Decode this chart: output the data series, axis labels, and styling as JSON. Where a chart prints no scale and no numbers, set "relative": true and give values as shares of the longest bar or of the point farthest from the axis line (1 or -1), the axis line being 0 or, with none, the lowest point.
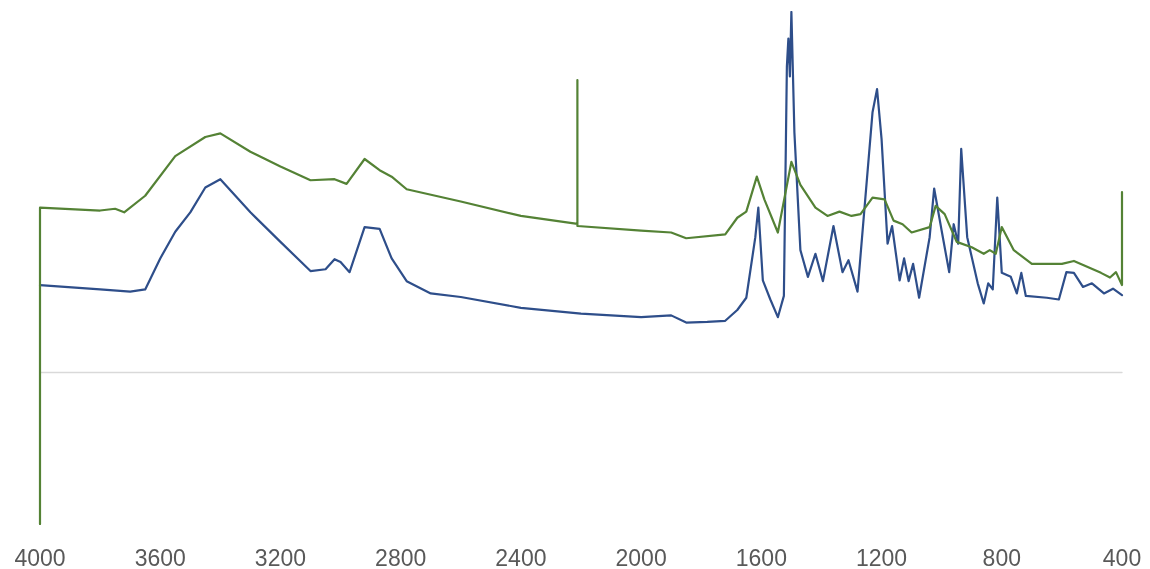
{
  "chart_data": {
    "type": "line",
    "relative": true,
    "xlim": [
      4000,
      400
    ],
    "xticks": [
      4000,
      3600,
      3200,
      2800,
      2400,
      2000,
      1600,
      1200,
      800,
      400
    ],
    "grid": false,
    "marker": "none",
    "line_style": "solid",
    "series": [
      {
        "color": "#2e4e8a",
        "x": [
          4000,
          3800,
          3700,
          3650,
          3600,
          3550,
          3500,
          3450,
          3400,
          3350,
          3300,
          3200,
          3100,
          3050,
          3020,
          3000,
          2970,
          2920,
          2870,
          2830,
          2780,
          2700,
          2600,
          2400,
          2200,
          2000,
          1900,
          1850,
          1780,
          1720,
          1680,
          1650,
          1620,
          1610,
          1595,
          1570,
          1545,
          1525,
          1515,
          1510,
          1505,
          1500,
          1490,
          1470,
          1445,
          1420,
          1395,
          1360,
          1330,
          1310,
          1280,
          1230,
          1215,
          1200,
          1180,
          1165,
          1140,
          1125,
          1110,
          1095,
          1075,
          1040,
          1025,
          1000,
          975,
          960,
          945,
          935,
          915,
          880,
          860,
          845,
          830,
          815,
          800,
          770,
          750,
          735,
          720,
          650,
          610,
          585,
          560,
          530,
          500,
          460,
          430,
          400
        ],
        "values": [
          0.242,
          0.23,
          0.224,
          0.23,
          0.316,
          0.39,
          0.444,
          0.513,
          0.536,
          0.49,
          0.444,
          0.362,
          0.281,
          0.286,
          0.314,
          0.306,
          0.278,
          0.403,
          0.398,
          0.316,
          0.253,
          0.219,
          0.209,
          0.179,
          0.163,
          0.153,
          0.158,
          0.138,
          0.14,
          0.143,
          0.173,
          0.207,
          0.375,
          0.457,
          0.255,
          0.202,
          0.153,
          0.212,
          0.849,
          0.926,
          0.821,
          1,
          0.666,
          0.339,
          0.265,
          0.329,
          0.253,
          0.406,
          0.278,
          0.311,
          0.224,
          0.722,
          0.786,
          0.648,
          0.357,
          0.406,
          0.255,
          0.316,
          0.253,
          0.301,
          0.207,
          0.375,
          0.51,
          0.393,
          0.278,
          0.411,
          0.357,
          0.62,
          0.375,
          0.247,
          0.191,
          0.247,
          0.23,
          0.485,
          0.276,
          0.265,
          0.219,
          0.276,
          0.212,
          0.207,
          0.202,
          0.278,
          0.276,
          0.237,
          0.247,
          0.219,
          0.232,
          0.214
        ]
      },
      {
        "color": "#548235",
        "x": [
          4000,
          4000,
          3800,
          3750,
          3720,
          3650,
          3550,
          3450,
          3400,
          3300,
          3200,
          3100,
          3020,
          2980,
          2920,
          2870,
          2830,
          2780,
          2600,
          2400,
          2212,
          2212,
          2212,
          2000,
          1900,
          1850,
          1720,
          1680,
          1650,
          1615,
          1590,
          1545,
          1500,
          1470,
          1420,
          1380,
          1340,
          1300,
          1270,
          1230,
          1190,
          1160,
          1130,
          1100,
          1040,
          1020,
          990,
          950,
          900,
          860,
          840,
          820,
          800,
          760,
          700,
          600,
          560,
          470,
          440,
          420,
          400,
          400
        ],
        "values": [
          -0.421,
          0.457,
          0.449,
          0.454,
          0.444,
          0.49,
          0.6,
          0.653,
          0.663,
          0.612,
          0.571,
          0.533,
          0.536,
          0.523,
          0.592,
          0.561,
          0.543,
          0.508,
          0.474,
          0.434,
          0.412,
          0.811,
          0.406,
          0.393,
          0.388,
          0.372,
          0.383,
          0.429,
          0.446,
          0.543,
          0.48,
          0.388,
          0.584,
          0.52,
          0.457,
          0.434,
          0.446,
          0.434,
          0.439,
          0.485,
          0.48,
          0.421,
          0.411,
          0.388,
          0.403,
          0.462,
          0.439,
          0.362,
          0.347,
          0.329,
          0.339,
          0.329,
          0.403,
          0.339,
          0.301,
          0.301,
          0.309,
          0.276,
          0.263,
          0.278,
          0.242,
          0.5
        ]
      }
    ]
  }
}
